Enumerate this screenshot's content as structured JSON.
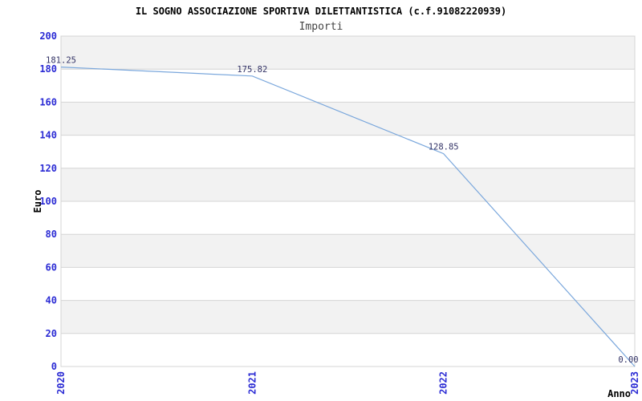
{
  "chart": {
    "title": "IL SOGNO ASSOCIAZIONE SPORTIVA DILETTANTISTICA (c.f.91082220939)",
    "subtitle": "Importi",
    "y_axis_title": "Euro",
    "x_axis_title": "Anno"
  },
  "colors": {
    "axis_tick_label": "#2b2bd4",
    "data_point_label": "#333366",
    "line": "#7aa7dc",
    "band_gray": "#f2f2f2",
    "band_white": "#ffffff",
    "grid_line": "#d4d4d4",
    "axis_title": "#000000",
    "title": "#000000",
    "subtitle": "#444444",
    "background": "#ffffff"
  },
  "chart_data": {
    "type": "line",
    "title": "IL SOGNO ASSOCIAZIONE SPORTIVA DILETTANTISTICA (c.f.91082220939)",
    "subtitle": "Importi",
    "xlabel": "Anno",
    "ylabel": "Euro",
    "categories": [
      "2020",
      "2021",
      "2022",
      "2023"
    ],
    "values": [
      181.25,
      175.82,
      128.85,
      0.0
    ],
    "point_labels": [
      "181.25",
      "175.82",
      "128.85",
      "0.00"
    ],
    "ylim": [
      0,
      200
    ],
    "ytick_step": 20,
    "ytick_labels": [
      "0",
      "20",
      "40",
      "60",
      "80",
      "100",
      "120",
      "140",
      "160",
      "180",
      "200"
    ],
    "grid": "horizontal-alternating-bands",
    "legend": "none",
    "x_labels_rotated": true
  }
}
